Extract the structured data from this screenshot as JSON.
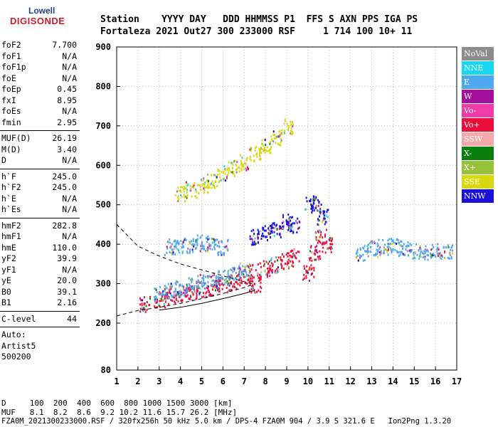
{
  "logo": {
    "line1": "Lowell",
    "line2": "DIGISONDE"
  },
  "header": {
    "line1": "Station    YYYY DAY   DDD HHMMSS P1  FFS S AXN PPS IGA PS",
    "line2": "Fortaleza 2021 Out27 300 233000 RSF     1 714 100 10+ 11"
  },
  "params": {
    "g1": [
      {
        "k": "foF2",
        "v": "7.700"
      },
      {
        "k": "foF1",
        "v": "N/A"
      },
      {
        "k": "foF1p",
        "v": "N/A"
      },
      {
        "k": "foE",
        "v": "N/A"
      },
      {
        "k": "foEp",
        "v": "0.45"
      },
      {
        "k": "fxI",
        "v": "8.95"
      },
      {
        "k": "foEs",
        "v": "N/A"
      },
      {
        "k": "fmin",
        "v": "2.95"
      }
    ],
    "g2": [
      {
        "k": "MUF(D)",
        "v": "26.19"
      },
      {
        "k": "M(D)",
        "v": "3.40"
      },
      {
        "k": "D",
        "v": "N/A"
      }
    ],
    "g3": [
      {
        "k": "h`F",
        "v": "245.0"
      },
      {
        "k": "h`F2",
        "v": "245.0"
      },
      {
        "k": "h`E",
        "v": "N/A"
      },
      {
        "k": "h`Es",
        "v": "N/A"
      }
    ],
    "g4": [
      {
        "k": "hmF2",
        "v": "282.8"
      },
      {
        "k": "hmF1",
        "v": "N/A"
      },
      {
        "k": "hmE",
        "v": "110.0"
      },
      {
        "k": "yF2",
        "v": "39.9"
      },
      {
        "k": "yF1",
        "v": "N/A"
      },
      {
        "k": "yE",
        "v": "20.0"
      },
      {
        "k": "B0",
        "v": "39.1"
      },
      {
        "k": "B1",
        "v": "2.16"
      }
    ],
    "g5": [
      {
        "k": "C-level",
        "v": "44"
      }
    ],
    "auto": [
      "Auto:",
      "Artist5",
      "500200"
    ]
  },
  "legend": [
    {
      "label": "NoVal",
      "color": "#8c8c8c"
    },
    {
      "label": "NNE",
      "color": "#19d7f0"
    },
    {
      "label": "E",
      "color": "#4fa8ee"
    },
    {
      "label": "W",
      "color": "#a50f9e"
    },
    {
      "label": "Vo-",
      "color": "#f03ca8"
    },
    {
      "label": "Vo+",
      "color": "#e8103a"
    },
    {
      "label": "SSW",
      "color": "#f4aaa8"
    },
    {
      "label": "X-",
      "color": "#0a7f10"
    },
    {
      "label": "X+",
      "color": "#98c03a"
    },
    {
      "label": "SSE",
      "color": "#d8d810"
    },
    {
      "label": "NNW",
      "color": "#1a10d8"
    }
  ],
  "footer": {
    "line1": "D     100  200  400  600  800 1000 1500 3000 [km]",
    "line2": "MUF   8.1  8.2  8.6  9.2 10.2 11.6 15.7 26.2 [MHz]",
    "line3": "FZA0M_2021300233000.RSF / 320fx256h 50 kHz 5.0 km / DPS-4 FZA0M 904 / 3.9 S 321.6 E   Ion2Png 1.3.20"
  },
  "chart_data": {
    "type": "scatter",
    "x_ticks": [
      1,
      2,
      3,
      4,
      5,
      6,
      7,
      8,
      9,
      10,
      11,
      12,
      13,
      14,
      15,
      16,
      17
    ],
    "y_ticks": [
      80,
      200,
      300,
      400,
      500,
      600,
      700,
      800,
      900
    ],
    "xlim": [
      1,
      17
    ],
    "ylim_note": "virtual height axis, non-linear spacing between 80 and 200",
    "grid": true,
    "clusters": [
      {
        "name": "O-trace F2",
        "color": "#e8103a",
        "x": [
          2.3,
          3,
          3.5,
          4,
          4.5,
          5,
          5.5,
          6,
          6.5,
          7,
          7.5
        ],
        "y": [
          250,
          262,
          270,
          276,
          280,
          285,
          290,
          298,
          305,
          318,
          335
        ]
      },
      {
        "name": "X-trace",
        "color": "#4fa8ee",
        "x": [
          3,
          3.5,
          4,
          4.5,
          5,
          5.5,
          6,
          6.5,
          7
        ],
        "y": [
          275,
          285,
          290,
          300,
          305,
          310,
          318,
          325,
          335
        ]
      },
      {
        "name": "Spread F 7.5-9.3",
        "color": "#e8103a",
        "x": [
          7.5,
          8,
          8.5,
          9,
          9.3
        ],
        "y": [
          300,
          340,
          350,
          360,
          370
        ]
      },
      {
        "name": "Spread F 10-10.9",
        "color": "#e8103a",
        "x": [
          10,
          10.3,
          10.6,
          10.9
        ],
        "y": [
          330,
          380,
          420,
          400
        ]
      },
      {
        "name": "NNW high returns",
        "color": "#1a10d8",
        "x": [
          7.5,
          8,
          8.5,
          9,
          9.3,
          10.1,
          10.4,
          10.7
        ],
        "y": [
          420,
          430,
          440,
          460,
          450,
          510,
          500,
          470
        ]
      },
      {
        "name": "Multi-hop E",
        "color": "#4fa8ee",
        "x": [
          3.5,
          4,
          4.5,
          5,
          5.5,
          6
        ],
        "y": [
          395,
          400,
          400,
          405,
          400,
          395
        ]
      },
      {
        "name": "Second hop SSE",
        "color": "#d8d810",
        "x": [
          4,
          4.5,
          5,
          5.5,
          6,
          6.5,
          7,
          7.5,
          8,
          8.5,
          9
        ],
        "y": [
          530,
          540,
          550,
          560,
          580,
          595,
          610,
          630,
          650,
          670,
          700
        ]
      },
      {
        "name": "Spread F 13-16.7",
        "color": "#4fa8ee",
        "x": [
          12.5,
          13,
          13.5,
          14,
          14.5,
          15,
          15.5,
          16,
          16.5
        ],
        "y": [
          380,
          390,
          395,
          400,
          390,
          385,
          380,
          385,
          380
        ]
      }
    ]
  }
}
